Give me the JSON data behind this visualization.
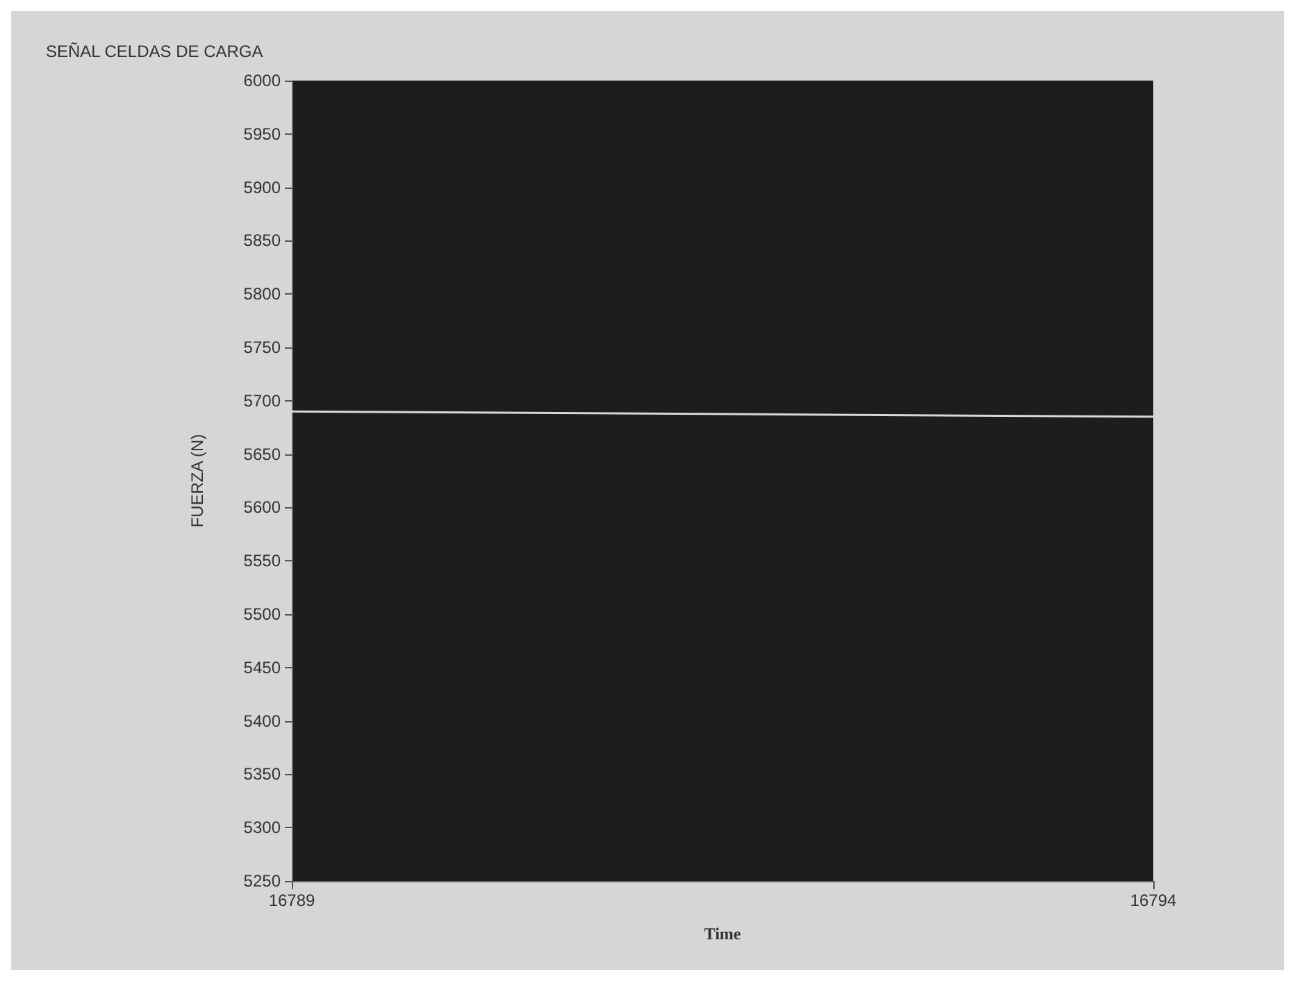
{
  "chart_data": {
    "type": "line",
    "title": "SEÑAL CELDAS DE CARGA",
    "xlabel": "Time",
    "ylabel": "FUERZA (N)",
    "x": [
      16789,
      16794
    ],
    "series": [
      {
        "color": "#d8d8d8",
        "values": [
          5690,
          5685
        ]
      }
    ],
    "xlim": [
      16789,
      16794
    ],
    "xticks": [
      16789,
      16794
    ],
    "ylim": [
      5250,
      6000
    ],
    "yticks": [
      5250,
      5300,
      5350,
      5400,
      5450,
      5500,
      5550,
      5600,
      5650,
      5700,
      5750,
      5800,
      5850,
      5900,
      5950,
      6000
    ],
    "marker": "none",
    "line_style": "solid"
  }
}
